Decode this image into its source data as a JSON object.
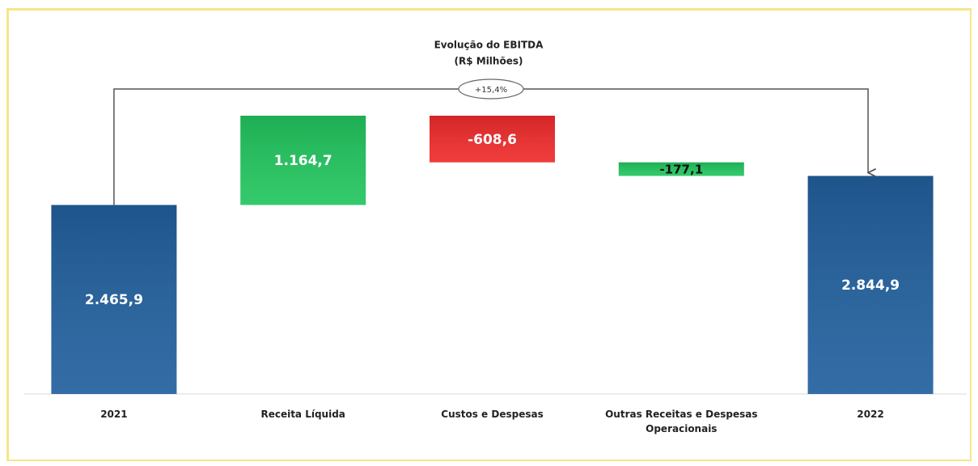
{
  "chart_data": {
    "type": "waterfall",
    "title": "Evolução do EBITDA",
    "subtitle": "(R$ Milhões)",
    "annotation": "+15,4%",
    "categories": [
      "2021",
      "Receita Líquida",
      "Custos e Despesas",
      "Outras Receitas e Despesas Operacionais",
      "2022"
    ],
    "values": [
      2465.9,
      1164.7,
      -608.6,
      -177.1,
      2844.9
    ],
    "value_labels": [
      "2.465,9",
      "1.164,7",
      "-608,6",
      "-177,1",
      "2.844,9"
    ],
    "colors": [
      "#22609e",
      "#22c55e",
      "#ef2b2b",
      "#22c55e",
      "#22609e"
    ]
  }
}
